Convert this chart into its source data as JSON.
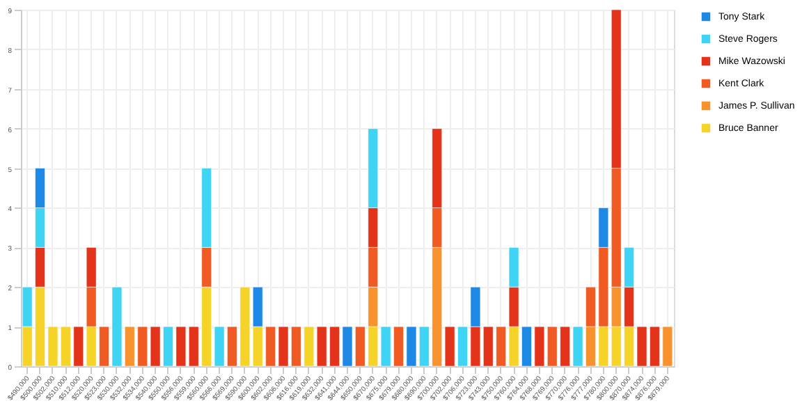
{
  "chart_data": {
    "type": "bar",
    "stacked": true,
    "categories": [
      "$490,000",
      "$500,000",
      "$502,000",
      "$510,000",
      "$512,000",
      "$520,000",
      "$523,000",
      "$530,000",
      "$532,000",
      "$534,000",
      "$540,000",
      "$550,000",
      "$556,000",
      "$559,000",
      "$560,000",
      "$566,000",
      "$569,000",
      "$590,000",
      "$600,000",
      "$602,000",
      "$606,000",
      "$616,000",
      "$619,000",
      "$632,000",
      "$641,000",
      "$644,000",
      "$650,000",
      "$670,000",
      "$675,000",
      "$679,000",
      "$680,000",
      "$690,000",
      "$700,000",
      "$702,000",
      "$706,000",
      "$723,000",
      "$743,000",
      "$750,000",
      "$760,000",
      "$764,000",
      "$768,000",
      "$769,000",
      "$770,000",
      "$776,000",
      "$777,000",
      "$780,000",
      "$800,000",
      "$870,000",
      "$874,000",
      "$876,000",
      "$879,000"
    ],
    "series": [
      {
        "name": "Bruce Banner",
        "color": "#f5d328",
        "values": [
          1,
          2,
          1,
          1,
          null,
          1,
          null,
          null,
          null,
          null,
          null,
          null,
          null,
          null,
          2,
          null,
          null,
          2,
          1,
          null,
          null,
          null,
          1,
          null,
          null,
          null,
          null,
          1,
          null,
          null,
          null,
          null,
          null,
          null,
          null,
          null,
          null,
          null,
          1,
          null,
          null,
          null,
          null,
          null,
          null,
          1,
          1,
          1,
          null,
          null,
          null
        ]
      },
      {
        "name": "James P. Sullivan",
        "color": "#f7922e",
        "values": [
          null,
          null,
          null,
          null,
          null,
          null,
          null,
          null,
          1,
          null,
          null,
          null,
          null,
          null,
          null,
          null,
          null,
          null,
          null,
          null,
          null,
          null,
          null,
          null,
          null,
          null,
          null,
          1,
          null,
          null,
          null,
          null,
          3,
          null,
          null,
          null,
          null,
          null,
          null,
          null,
          null,
          null,
          null,
          null,
          1,
          null,
          1,
          null,
          null,
          null,
          1
        ]
      },
      {
        "name": "Kent Clark",
        "color": "#f05a23",
        "values": [
          null,
          null,
          null,
          null,
          null,
          1,
          1,
          null,
          null,
          1,
          null,
          null,
          null,
          null,
          1,
          null,
          1,
          null,
          null,
          1,
          null,
          1,
          null,
          null,
          null,
          null,
          1,
          1,
          null,
          1,
          null,
          null,
          1,
          null,
          null,
          null,
          null,
          1,
          null,
          null,
          null,
          1,
          null,
          null,
          1,
          2,
          3,
          null,
          null,
          null,
          null
        ]
      },
      {
        "name": "Mike Wazowski",
        "color": "#e3331a",
        "values": [
          null,
          1,
          null,
          null,
          1,
          1,
          null,
          null,
          null,
          null,
          1,
          null,
          1,
          1,
          null,
          null,
          null,
          null,
          null,
          null,
          1,
          null,
          null,
          1,
          1,
          null,
          null,
          1,
          null,
          null,
          null,
          null,
          2,
          1,
          null,
          1,
          1,
          null,
          1,
          null,
          1,
          null,
          1,
          null,
          null,
          null,
          4,
          1,
          1,
          1,
          null
        ]
      },
      {
        "name": "Steve Rogers",
        "color": "#40d4f4",
        "values": [
          1,
          1,
          null,
          null,
          null,
          null,
          null,
          2,
          null,
          null,
          null,
          1,
          null,
          null,
          2,
          1,
          null,
          null,
          null,
          null,
          null,
          null,
          null,
          null,
          null,
          null,
          null,
          2,
          1,
          null,
          null,
          1,
          null,
          null,
          1,
          null,
          null,
          null,
          1,
          null,
          null,
          null,
          null,
          1,
          null,
          null,
          null,
          1,
          null,
          null,
          null
        ]
      },
      {
        "name": "Tony Stark",
        "color": "#1e88e5",
        "values": [
          null,
          1,
          null,
          null,
          null,
          null,
          null,
          null,
          null,
          null,
          null,
          null,
          null,
          null,
          null,
          null,
          null,
          null,
          1,
          null,
          null,
          null,
          null,
          null,
          null,
          1,
          null,
          null,
          null,
          null,
          1,
          null,
          null,
          null,
          null,
          1,
          null,
          null,
          null,
          1,
          null,
          null,
          null,
          null,
          null,
          1,
          null,
          null,
          null,
          null,
          null
        ]
      }
    ],
    "ylim": [
      0,
      9
    ],
    "yticks": [
      0,
      1,
      2,
      3,
      4,
      5,
      6,
      7,
      8,
      9
    ],
    "grid": true,
    "legend": "top right"
  }
}
